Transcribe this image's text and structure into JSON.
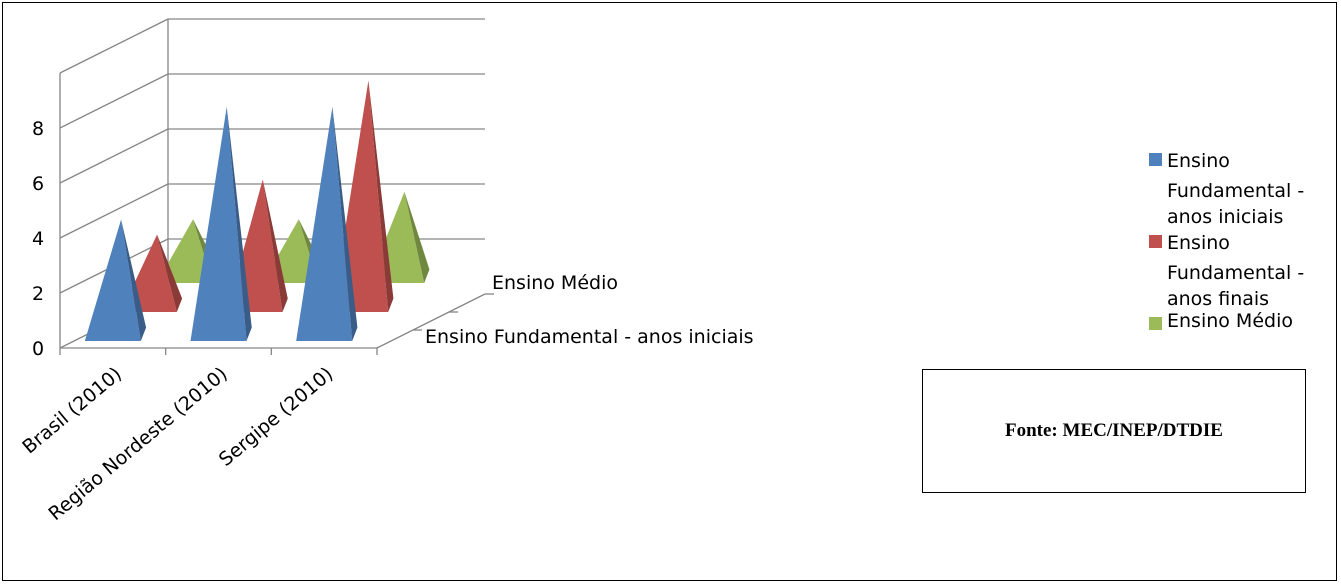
{
  "chart_data": {
    "type": "bar",
    "variant": "3d-pyramid",
    "title": "",
    "xlabel": "",
    "ylabel": "",
    "categories": [
      "Brasil (2010)",
      "Região Nordeste (2010)",
      "Sergipe (2010)"
    ],
    "series": [
      {
        "name": "Ensino Fundamental - anos iniciais",
        "color": "#4f81bd",
        "values": [
          4.2,
          8.3,
          8.3
        ]
      },
      {
        "name": "Ensino Fundamental - anos finais",
        "color": "#c0504d",
        "values": [
          2.6,
          4.6,
          8.2
        ]
      },
      {
        "name": "Ensino Médio",
        "color": "#9bbb59",
        "values": [
          2.1,
          2.1,
          3.1
        ]
      }
    ],
    "yticks": [
      "0",
      "2",
      "4",
      "6",
      "8"
    ],
    "ylim": [
      0,
      8
    ],
    "depth_labels": [
      "Ensino Fundamental - anos iniciais",
      "Ensino Médio"
    ],
    "grid": true,
    "legend": "right"
  },
  "legend": {
    "items": [
      {
        "label_lines": [
          "Ensino",
          "Fundamental -",
          "anos iniciais"
        ],
        "color": "#4f81bd"
      },
      {
        "label_lines": [
          "Ensino",
          "Fundamental -",
          "anos finais"
        ],
        "color": "#c0504d"
      },
      {
        "label_lines": [
          "Ensino Médio"
        ],
        "color": "#9bbb59"
      }
    ]
  },
  "source": {
    "text": "Fonte: MEC/INEP/DTDIE"
  }
}
